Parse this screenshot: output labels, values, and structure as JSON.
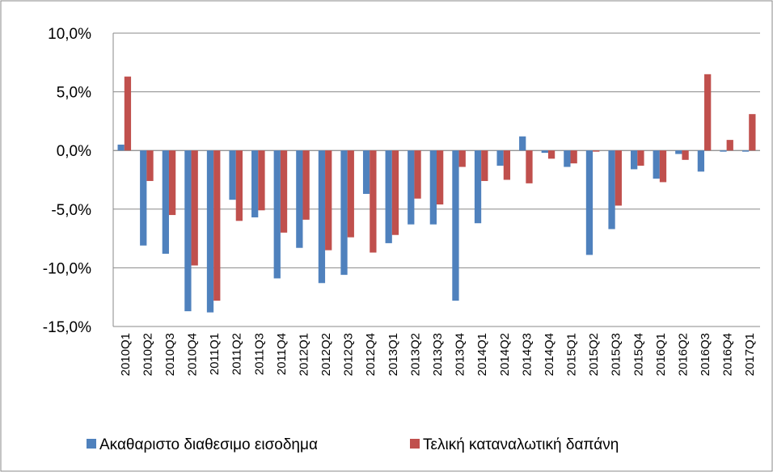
{
  "chart_data": {
    "type": "bar",
    "categories": [
      "2010Q1",
      "2010Q2",
      "2010Q3",
      "2010Q4",
      "2011Q1",
      "2011Q2",
      "2011Q3",
      "2011Q4",
      "2012Q1",
      "2012Q2",
      "2012Q3",
      "2012Q4",
      "2013Q1",
      "2013Q2",
      "2013Q3",
      "2013Q4",
      "2014Q1",
      "2014Q2",
      "2014Q3",
      "2014Q4",
      "2015Q1",
      "2015Q2",
      "2015Q3",
      "2015Q4",
      "2016Q1",
      "2016Q2",
      "2016Q3",
      "2016Q4",
      "2017Q1"
    ],
    "series": [
      {
        "name": "Ακαθαριστο διαθεσιμο εισοδημα",
        "color": "#4f81bd",
        "values": [
          0.5,
          -8.1,
          -8.8,
          -13.7,
          -13.8,
          -4.2,
          -5.7,
          -10.9,
          -8.3,
          -11.3,
          -10.6,
          -3.7,
          -7.9,
          -6.3,
          -6.3,
          -12.8,
          -6.2,
          -1.3,
          1.2,
          -0.2,
          -1.4,
          -8.9,
          -6.7,
          -1.6,
          -2.4,
          -0.3,
          -1.8,
          -0.1,
          -0.1
        ]
      },
      {
        "name": "Τελική καταναλωτική δαπάνη",
        "color": "#c0504d",
        "values": [
          6.3,
          -2.6,
          -5.5,
          -9.8,
          -12.8,
          -6.0,
          -5.1,
          -7.0,
          -5.9,
          -8.5,
          -7.4,
          -8.7,
          -7.2,
          -4.1,
          -4.6,
          -1.4,
          -2.6,
          -2.5,
          -2.8,
          -0.7,
          -1.1,
          -0.1,
          -4.7,
          -1.3,
          -2.7,
          -0.8,
          6.5,
          0.9,
          3.1
        ]
      }
    ],
    "ylim": [
      -15,
      10
    ],
    "yticks": [
      {
        "value": -15,
        "label": "-15,0%"
      },
      {
        "value": -10,
        "label": "-10,0%"
      },
      {
        "value": -5,
        "label": "-5,0%"
      },
      {
        "value": 0,
        "label": "0,0%"
      },
      {
        "value": 5,
        "label": "5,0%"
      },
      {
        "value": 10,
        "label": "10,0%"
      }
    ],
    "grid": true,
    "legend": "bottom"
  }
}
